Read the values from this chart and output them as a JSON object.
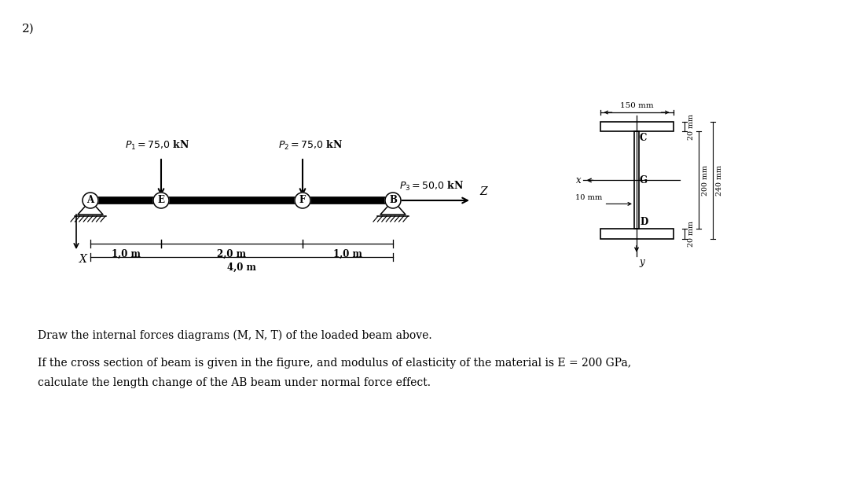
{
  "bg_color": "#ffffff",
  "fig_width": 10.79,
  "fig_height": 6.12,
  "label_2": "2)",
  "text_line1": "Draw the internal forces diagrams (M, N, T) of the loaded beam above.",
  "text_line2": "If the cross section of beam is given in the figure, and modulus of elasticity of the material is E = 200 GPa,",
  "text_line3": "calculate the length change of the AB beam under normal force effect."
}
